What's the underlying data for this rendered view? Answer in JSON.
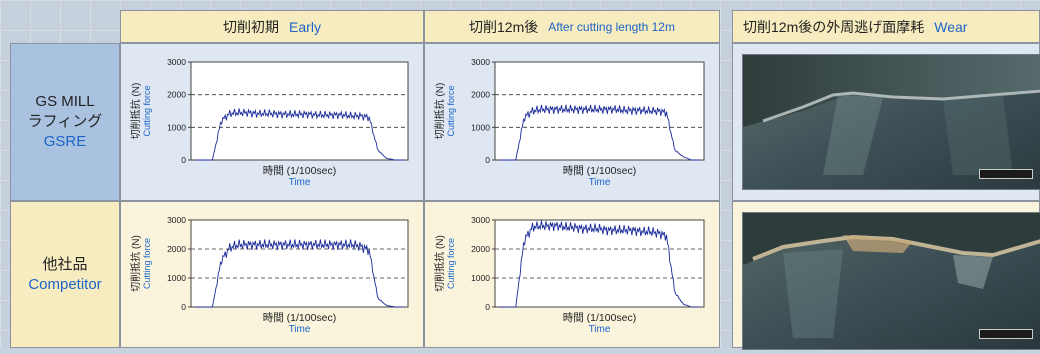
{
  "headers": {
    "early_jp": "切削初期",
    "early_en": "Early",
    "after_jp": "切削12m後",
    "after_en": "After cutting length 12m",
    "wear_jp": "切削12m後の外周逃げ面摩耗",
    "wear_en": "Wear"
  },
  "rows": [
    {
      "line1": "GS MILL",
      "line2": "ラフィング",
      "line3": "GSRE"
    },
    {
      "line1": "他社品",
      "line2": "Competitor"
    }
  ],
  "axis": {
    "ylabel_jp": "切削抵抗 (N)",
    "ylabel_en": "Cutting force",
    "xlabel_jp": "時間 (1/100sec)",
    "xlabel_en": "Time",
    "yticks": [
      "3000",
      "2000",
      "1000",
      "0"
    ]
  },
  "chart_data": [
    {
      "type": "line",
      "id": "gsre-early",
      "ylim": [
        0,
        3000
      ],
      "yticks": [
        0,
        1000,
        2000,
        3000
      ],
      "grid_dashed_at": [
        1000,
        2000
      ],
      "xlabel": "時間 (1/100sec) Time",
      "ylabel": "切削抵抗 (N) Cutting force",
      "series": [
        {
          "values": [
            0,
            0,
            0,
            1200,
            1420,
            1450,
            1450,
            1420,
            1420,
            1420,
            1400,
            1400,
            1400,
            1400,
            1380,
            1380,
            1380,
            1380,
            1350,
            1350,
            1300,
            300,
            50,
            0,
            0
          ]
        }
      ]
    },
    {
      "type": "line",
      "id": "gsre-12m",
      "ylim": [
        0,
        3000
      ],
      "yticks": [
        0,
        1000,
        2000,
        3000
      ],
      "grid_dashed_at": [
        1000,
        2000
      ],
      "xlabel": "時間 (1/100sec) Time",
      "ylabel": "切削抵抗 (N) Cutting force",
      "series": [
        {
          "values": [
            0,
            0,
            0,
            1300,
            1500,
            1550,
            1550,
            1550,
            1550,
            1550,
            1550,
            1550,
            1550,
            1550,
            1550,
            1520,
            1520,
            1520,
            1500,
            1500,
            1450,
            300,
            100,
            0,
            0
          ]
        }
      ]
    },
    {
      "type": "line",
      "id": "competitor-early",
      "ylim": [
        0,
        3000
      ],
      "yticks": [
        0,
        1000,
        2000,
        3000
      ],
      "grid_dashed_at": [
        1000,
        2000
      ],
      "xlabel": "時間 (1/100sec) Time",
      "ylabel": "切削抵抗 (N) Cutting force",
      "series": [
        {
          "values": [
            0,
            0,
            0,
            1600,
            2050,
            2150,
            2150,
            2150,
            2150,
            2150,
            2150,
            2150,
            2150,
            2150,
            2150,
            2150,
            2150,
            2150,
            2150,
            2100,
            1950,
            300,
            50,
            0,
            0
          ]
        }
      ]
    },
    {
      "type": "line",
      "id": "competitor-12m",
      "ylim": [
        0,
        3000
      ],
      "yticks": [
        0,
        1000,
        2000,
        3000
      ],
      "grid_dashed_at": [
        1000,
        2000
      ],
      "xlabel": "時間 (1/100sec) Time",
      "ylabel": "切削抵抗 (N) Cutting force",
      "series": [
        {
          "values": [
            0,
            0,
            0,
            2300,
            2750,
            2800,
            2800,
            2800,
            2750,
            2750,
            2700,
            2700,
            2700,
            2650,
            2650,
            2650,
            2650,
            2600,
            2600,
            2550,
            2450,
            500,
            100,
            0,
            0
          ]
        }
      ]
    }
  ]
}
